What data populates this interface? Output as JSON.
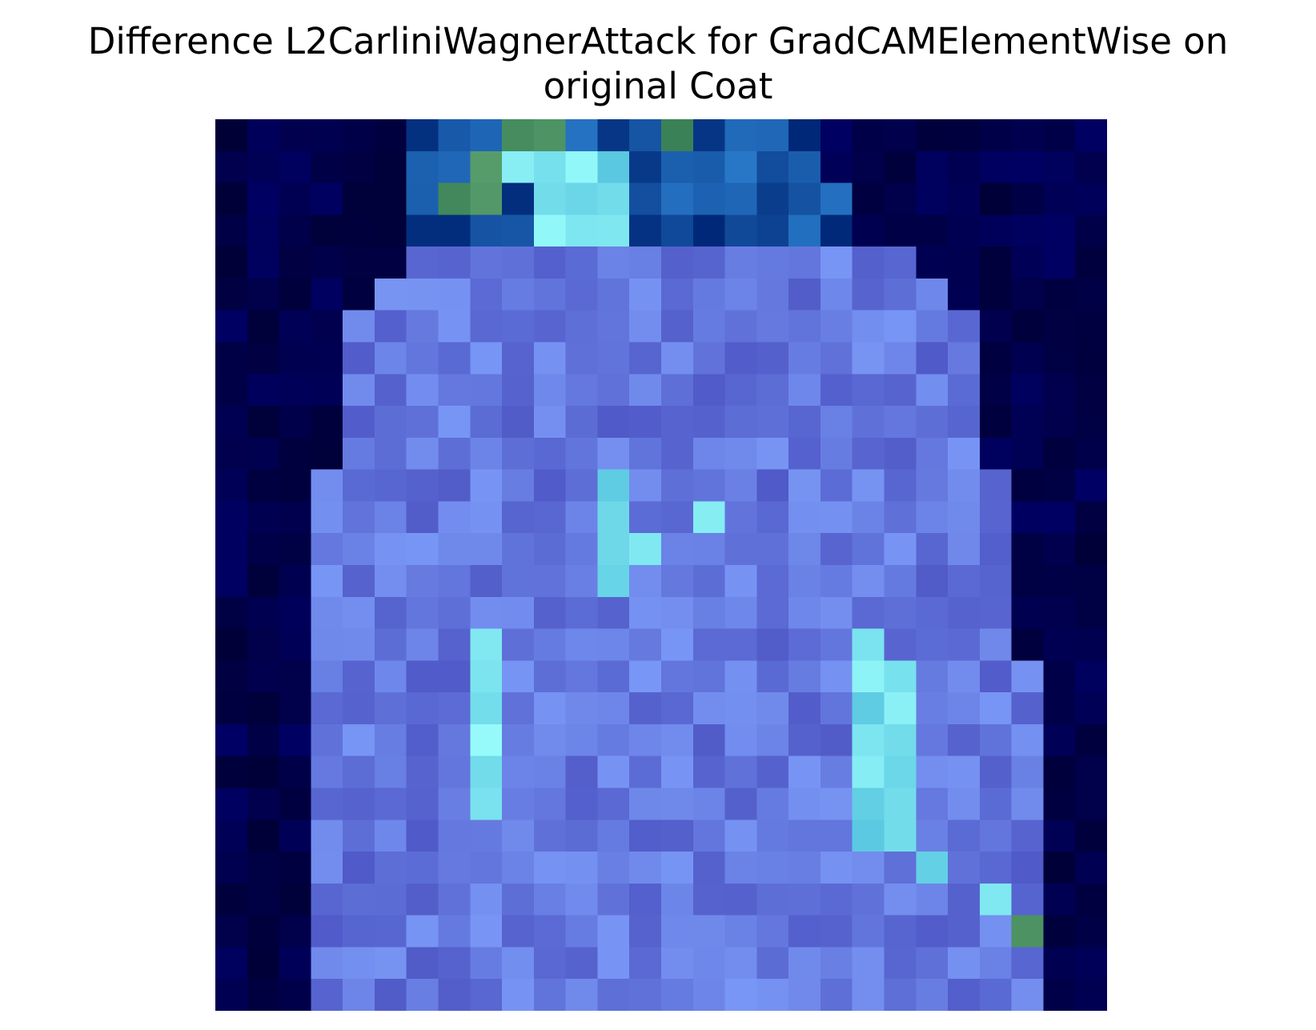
{
  "figure": {
    "title_line1": "Difference L2CarliniWagnerAttack for GradCAMElementWise on",
    "title_line2": "original Coat"
  },
  "chart_data": {
    "type": "heatmap",
    "title": "Difference L2CarliniWagnerAttack for GradCAMElementWise on original Coat",
    "rows": 28,
    "cols": 28,
    "axes": "off",
    "grid": false,
    "colors": {
      "background": "#00004a",
      "body": "#6070e0",
      "highlight": "#70f0f0",
      "green": "#3a8060"
    }
  }
}
